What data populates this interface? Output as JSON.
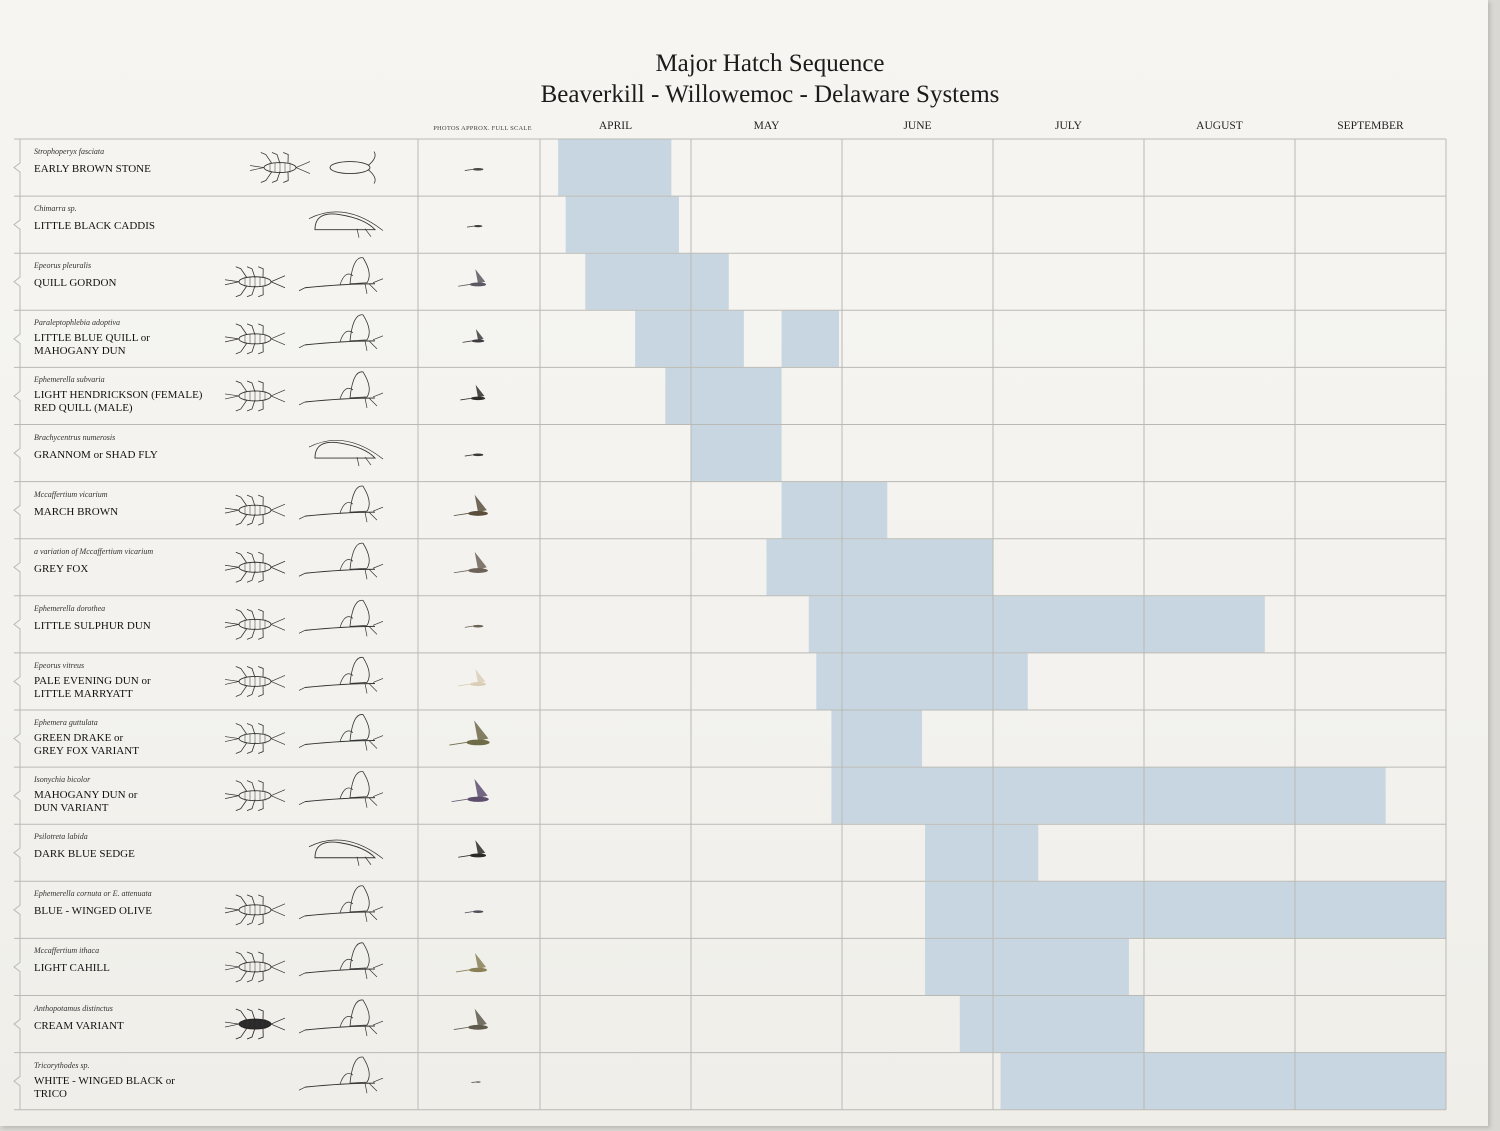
{
  "chart_data": {
    "type": "gantt",
    "title": "Major Hatch Sequence",
    "subtitle": "Beaverkill - Willowemoc - Delaware Systems",
    "photo_header": "PHOTOS APPROX. FULL SCALE",
    "months": [
      "APRIL",
      "MAY",
      "JUNE",
      "JULY",
      "AUGUST",
      "SEPTEMBER"
    ],
    "x_unit": "months from April 1",
    "xlim": [
      0,
      6
    ],
    "bar_color": "#c7d6e0",
    "grid_color": "#b9b9b6",
    "rows": [
      {
        "scientific": "Strophoperyx fasciata",
        "common": "EARLY BROWN STONE",
        "start": 0.12,
        "end": 0.87,
        "illus": "stonefly",
        "photo_color": "#4a4842",
        "photo_size": 0.6
      },
      {
        "scientific": "Chimarra sp.",
        "common": "LITTLE BLACK CADDIS",
        "start": 0.17,
        "end": 0.92,
        "illus": "caddis",
        "photo_color": "#3e3c38",
        "photo_size": 0.5
      },
      {
        "scientific": "Epeorus pleuralis",
        "common": "QUILL GORDON",
        "start": 0.3,
        "end": 1.25,
        "illus": "mayfly",
        "photo_color": "#5a5860",
        "photo_size": 0.9
      },
      {
        "scientific": "Paraleptophlebia adoptiva",
        "common": "LITTLE BLUE QUILL or\nMAHOGANY DUN",
        "start": 0.63,
        "end": 1.35,
        "extra": [
          [
            1.6,
            1.98
          ]
        ],
        "illus": "mayfly",
        "photo_color": "#3d3b40",
        "photo_size": 0.7
      },
      {
        "scientific": "Ephemerella subvaria",
        "common": "LIGHT HENDRICKSON (FEMALE)\nRED QUILL (MALE)",
        "start": 0.83,
        "end": 1.6,
        "illus": "mayfly",
        "photo_color": "#2f2d2a",
        "photo_size": 0.8
      },
      {
        "scientific": "Brachycentrus numerosis",
        "common": "GRANNOM or SHAD FLY",
        "start": 1.0,
        "end": 1.6,
        "illus": "caddis",
        "photo_color": "#3a3934",
        "photo_size": 0.6
      },
      {
        "scientific": "Mccaffertium vicarium",
        "common": "MARCH BROWN",
        "start": 1.6,
        "end": 2.3,
        "illus": "mayfly",
        "photo_color": "#5b4f3c",
        "photo_size": 1.1
      },
      {
        "scientific": "a variation of Mccaffertium vicarium",
        "common": "GREY FOX",
        "start": 1.5,
        "end": 3.0,
        "illus": "mayfly",
        "photo_color": "#6c6258",
        "photo_size": 1.1
      },
      {
        "scientific": "Ephemerella dorothea",
        "common": "LITTLE SULPHUR DUN",
        "start": 1.78,
        "end": 4.8,
        "illus": "mayfly",
        "photo_color": "#6a6254",
        "photo_size": 0.6
      },
      {
        "scientific": "Epeorus vitreus",
        "common": "PALE EVENING DUN or\nLITTLE MARRYATT",
        "start": 1.83,
        "end": 3.23,
        "illus": "mayfly",
        "photo_color": "#d9cfb6",
        "photo_size": 0.9
      },
      {
        "scientific": "Ephemera guttulata",
        "common": "GREEN DRAKE or\nGREY FOX VARIANT",
        "start": 1.93,
        "end": 2.53,
        "illus": "mayfly",
        "photo_color": "#6f6a48",
        "photo_size": 1.3
      },
      {
        "scientific": "Isonychia bicolor",
        "common": "MAHOGANY DUN or\nDUN VARIANT",
        "start": 1.93,
        "end": 5.6,
        "illus": "mayfly",
        "photo_color": "#5d4e6e",
        "photo_size": 1.2
      },
      {
        "scientific": "Psilotreta labida",
        "common": "DARK BLUE SEDGE",
        "start": 2.55,
        "end": 3.3,
        "illus": "caddis",
        "photo_color": "#2b2a28",
        "photo_size": 0.9
      },
      {
        "scientific": "Ephemerella cornuta or E. attenuata",
        "common": "BLUE - WINGED OLIVE",
        "start": 2.55,
        "end": 6.0,
        "illus": "mayfly",
        "photo_color": "#4f4d5a",
        "photo_size": 0.6
      },
      {
        "scientific": "Mccaffertium ithaca",
        "common": "LIGHT CAHILL",
        "start": 2.55,
        "end": 3.9,
        "illus": "mayfly",
        "photo_color": "#8a8058",
        "photo_size": 1.0
      },
      {
        "scientific": "Anthopotamus distinctus",
        "common": "CREAM VARIANT",
        "start": 2.78,
        "end": 4.0,
        "illus": "mayfly-dark",
        "photo_color": "#5e5a4c",
        "photo_size": 1.1
      },
      {
        "scientific": "Tricorythodes sp.",
        "common": "WHITE - WINGED BLACK or\nTRICO",
        "start": 3.05,
        "end": 6.0,
        "illus": "spinner",
        "photo_color": "#55534e",
        "photo_size": 0.3
      }
    ]
  }
}
